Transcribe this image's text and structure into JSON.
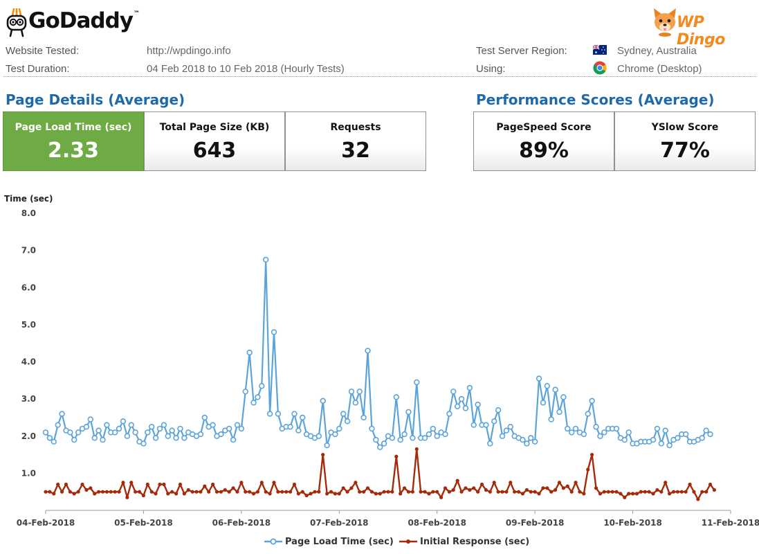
{
  "header": {
    "left_logo": {
      "brand": "GoDaddy",
      "tm": "™",
      "icon": "godaddy-robot-icon"
    },
    "right_logo": {
      "brand": "WP Dingo",
      "icon": "dingo-mascot-icon",
      "color": "#f38a1f"
    }
  },
  "info": {
    "website_tested_label": "Website Tested:",
    "website_tested_value": "http://wpdingo.info",
    "test_duration_label": "Test Duration:",
    "test_duration_value": "04 Feb 2018 to 10 Feb 2018 (Hourly Tests)",
    "server_region_label": "Test Server Region:",
    "server_region_value": "Sydney, Australia",
    "server_region_icon": "australia-flag-icon",
    "using_label": "Using:",
    "using_value": "Chrome (Desktop)",
    "using_icon": "chrome-icon"
  },
  "page_details": {
    "title": "Page Details (Average)",
    "metrics": [
      {
        "label": "Page Load Time (sec)",
        "value": "2.33"
      },
      {
        "label": "Total Page Size (KB)",
        "value": "643"
      },
      {
        "label": "Requests",
        "value": "32"
      }
    ]
  },
  "performance": {
    "title": "Performance Scores (Average)",
    "metrics": [
      {
        "label": "PageSpeed Score",
        "value": "89%"
      },
      {
        "label": "YSlow Score",
        "value": "77%"
      }
    ]
  },
  "colors": {
    "accent_blue": "#1e6aa8",
    "green": "#6fab44",
    "series_blue": "#5ba3d9",
    "series_red": "#a52a0a"
  },
  "chart_data": {
    "type": "line",
    "ylabel": "Time (sec)",
    "ylim": [
      0,
      8
    ],
    "yticks": [
      "8.0",
      "7.0",
      "6.0",
      "5.0",
      "4.0",
      "3.0",
      "2.0",
      "1.0"
    ],
    "xlim": [
      0,
      168
    ],
    "xticks": [
      {
        "label": "04-Feb-2018",
        "x": 0
      },
      {
        "label": "05-Feb-2018",
        "x": 24
      },
      {
        "label": "06-Feb-2018",
        "x": 48
      },
      {
        "label": "07-Feb-2018",
        "x": 72
      },
      {
        "label": "08-Feb-2018",
        "x": 96
      },
      {
        "label": "09-Feb-2018",
        "x": 120
      },
      {
        "label": "10-Feb-2018",
        "x": 144
      },
      {
        "label": "11-Feb-2018",
        "x": 168
      }
    ],
    "grid": false,
    "legend_position": "bottom",
    "series": [
      {
        "name": "Page Load Time (sec)",
        "marker": "circle",
        "color": "#5ba3d9",
        "values": [
          2.1,
          1.95,
          1.85,
          2.3,
          2.6,
          2.15,
          2.1,
          1.9,
          2.1,
          2.2,
          2.25,
          2.45,
          1.95,
          2.15,
          1.9,
          2.3,
          2.1,
          2.1,
          2.2,
          2.4,
          2.0,
          2.3,
          2.1,
          1.85,
          1.8,
          2.1,
          2.25,
          1.95,
          2.2,
          2.3,
          2.0,
          2.15,
          1.95,
          2.2,
          1.95,
          2.1,
          2.05,
          2.0,
          2.05,
          2.5,
          2.25,
          2.3,
          2.0,
          2.05,
          2.15,
          2.2,
          1.9,
          2.3,
          2.2,
          3.2,
          4.25,
          2.9,
          3.05,
          3.35,
          6.75,
          2.6,
          4.8,
          2.6,
          2.2,
          2.25,
          2.25,
          2.6,
          2.15,
          2.5,
          2.05,
          2.0,
          1.95,
          2.0,
          2.95,
          1.75,
          2.1,
          2.05,
          2.2,
          2.6,
          2.4,
          3.2,
          2.9,
          3.2,
          2.5,
          4.3,
          2.2,
          1.9,
          1.7,
          1.8,
          2.0,
          1.95,
          3.05,
          1.9,
          2.05,
          2.65,
          1.95,
          3.45,
          1.95,
          1.95,
          2.05,
          2.2,
          2.0,
          2.1,
          2.05,
          2.6,
          3.2,
          2.8,
          3.0,
          2.75,
          3.3,
          2.3,
          2.85,
          2.3,
          2.3,
          1.8,
          2.4,
          2.7,
          2.0,
          2.15,
          2.25,
          2.0,
          1.95,
          1.9,
          1.8,
          1.95,
          1.85,
          3.55,
          2.9,
          3.35,
          2.45,
          3.25,
          2.65,
          3.05,
          2.2,
          2.1,
          2.2,
          2.1,
          2.05,
          2.6,
          2.95,
          2.25,
          2.0,
          2.1,
          2.2,
          2.2,
          2.2,
          1.95,
          1.9,
          2.1,
          1.8,
          1.8,
          1.85,
          1.85,
          1.85,
          1.9,
          2.2,
          1.8,
          2.15,
          1.75,
          1.9,
          1.95,
          2.05,
          2.05,
          1.85,
          1.85,
          1.9,
          1.95,
          2.15,
          2.05
        ]
      },
      {
        "name": "Initial Response (sec)",
        "marker": "dot",
        "color": "#a52a0a",
        "values": [
          0.5,
          0.5,
          0.45,
          0.7,
          0.5,
          0.7,
          0.5,
          0.45,
          0.5,
          0.7,
          0.55,
          0.6,
          0.45,
          0.5,
          0.5,
          0.5,
          0.5,
          0.5,
          0.5,
          0.75,
          0.35,
          0.75,
          0.5,
          0.5,
          0.4,
          0.7,
          0.5,
          0.45,
          0.7,
          0.7,
          0.45,
          0.5,
          0.45,
          0.7,
          0.45,
          0.55,
          0.5,
          0.5,
          0.5,
          0.65,
          0.5,
          0.7,
          0.5,
          0.5,
          0.55,
          0.5,
          0.6,
          0.5,
          0.75,
          0.5,
          0.5,
          0.45,
          0.5,
          0.75,
          0.5,
          0.45,
          0.75,
          0.5,
          0.5,
          0.5,
          0.5,
          0.7,
          0.45,
          0.5,
          0.4,
          0.45,
          0.5,
          0.5,
          1.5,
          0.45,
          0.5,
          0.45,
          0.45,
          0.6,
          0.5,
          0.6,
          0.75,
          0.5,
          0.5,
          0.6,
          0.5,
          0.45,
          0.45,
          0.5,
          0.5,
          0.5,
          1.45,
          0.45,
          0.6,
          0.5,
          0.5,
          1.65,
          0.5,
          0.5,
          0.45,
          0.5,
          0.5,
          0.35,
          0.6,
          0.5,
          0.55,
          0.8,
          0.5,
          0.6,
          0.55,
          0.6,
          0.5,
          0.7,
          0.55,
          0.5,
          0.75,
          0.5,
          0.5,
          0.5,
          0.75,
          0.5,
          0.5,
          0.45,
          0.55,
          0.5,
          0.5,
          0.45,
          0.6,
          0.6,
          0.5,
          0.55,
          0.75,
          0.6,
          0.65,
          0.5,
          0.75,
          0.5,
          0.45,
          1.1,
          1.5,
          0.6,
          0.45,
          0.5,
          0.5,
          0.5,
          0.5,
          0.45,
          0.35,
          0.45,
          0.45,
          0.45,
          0.5,
          0.5,
          0.5,
          0.45,
          0.55,
          0.5,
          0.75,
          0.45,
          0.5,
          0.5,
          0.5,
          0.5,
          0.7,
          0.5,
          0.3,
          0.5,
          0.5,
          0.7,
          0.55
        ]
      }
    ]
  }
}
